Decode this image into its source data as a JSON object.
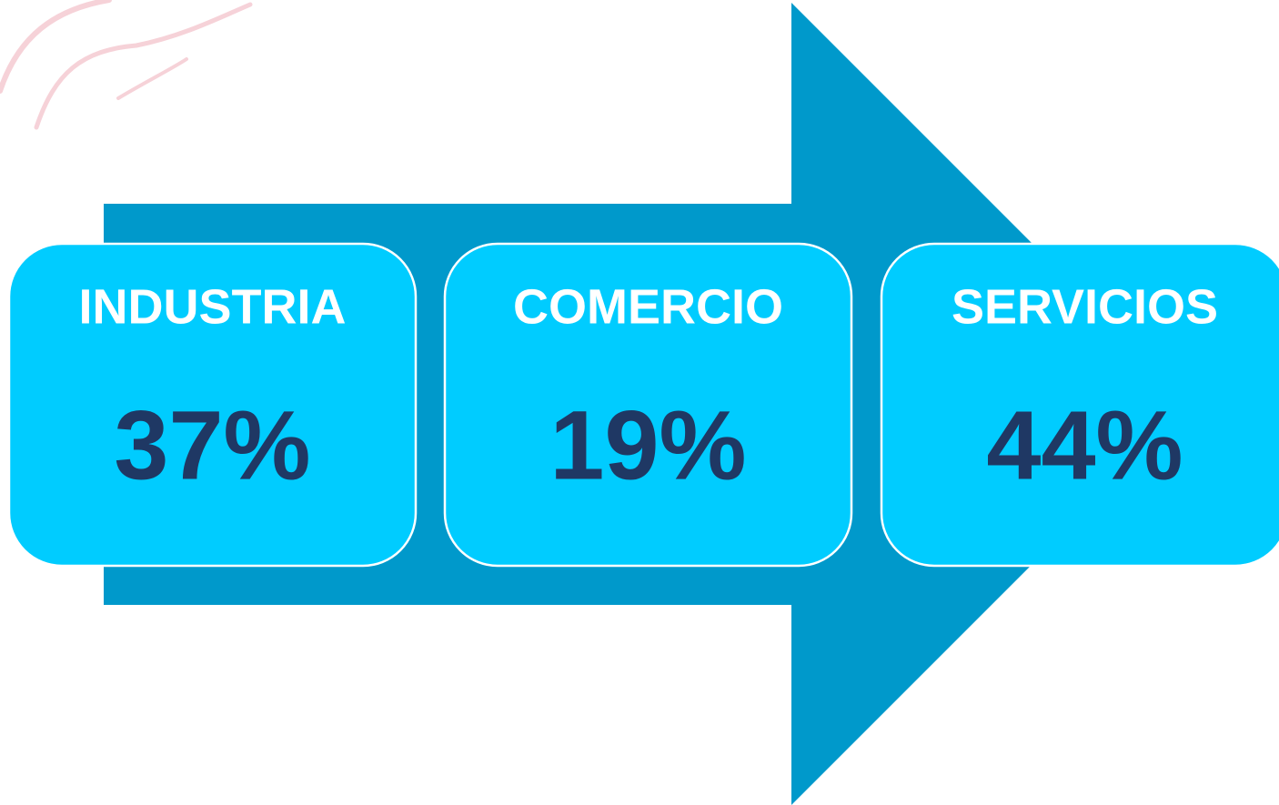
{
  "items": [
    {
      "label": "INDUSTRIA",
      "value": "37%"
    },
    {
      "label": "COMERCIO",
      "value": "19%"
    },
    {
      "label": "SERVICIOS",
      "value": "44%"
    }
  ]
}
